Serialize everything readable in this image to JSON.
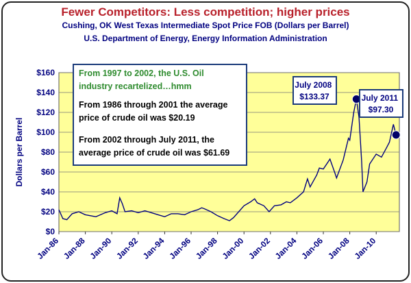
{
  "header": {
    "title": "Fewer Competitors: Less competition; higher prices",
    "subtitle": "Cushing, OK West Texas Intermediate Spot Price FOB (Dollars per Barrel)",
    "source": "U.S. Department of Energy, Energy Information Administration"
  },
  "annotation_box": {
    "lines_green": [
      "From 1997 to 2002, the U.S. Oil",
      "industry recartelized…hmm"
    ],
    "lines_a": [
      "From 1986 through 2001 the average",
      "price of crude oil was $20.19"
    ],
    "lines_b": [
      "From 2002 through July 2011, the",
      "average price of crude oil was $61.69"
    ]
  },
  "callouts": [
    {
      "lines": [
        "July 2008",
        "$133.37"
      ],
      "x": 2008.5,
      "y": 133.37
    },
    {
      "lines": [
        "July 2011",
        "$97.30"
      ],
      "x": 2011.5,
      "y": 97.3
    }
  ],
  "colors": {
    "plot_bg": "#ffff99",
    "line": "#000080",
    "green_text": "#2e8b2e",
    "marker": "#000066"
  },
  "chart_data": {
    "type": "line",
    "title": "Fewer Competitors: Less competition; higher prices",
    "xlabel": "",
    "ylabel": "Dollars per Barrel",
    "ylim": [
      0,
      160
    ],
    "xlim": [
      1986,
      2011.75
    ],
    "grid": "horizontal",
    "yticks": [
      "$0",
      "$20",
      "$40",
      "$60",
      "$80",
      "$100",
      "$120",
      "$140",
      "$160"
    ],
    "xticks": [
      "Jan-86",
      "Jan-88",
      "Jan-90",
      "Jan-92",
      "Jan-94",
      "Jan-96",
      "Jan-98",
      "Jan-00",
      "Jan-02",
      "Jan-04",
      "Jan-06",
      "Jan-08",
      "Jan-10"
    ],
    "series": [
      {
        "x": [
          1986.0,
          1986.3,
          1986.6,
          1987.0,
          1987.5,
          1988.0,
          1988.8,
          1989.5,
          1990.0,
          1990.4,
          1990.6,
          1990.8,
          1991.0,
          1991.5,
          1992.0,
          1992.5,
          1993.0,
          1993.5,
          1994.0,
          1994.5,
          1995.0,
          1995.5,
          1996.0,
          1996.5,
          1996.8,
          1997.0,
          1997.5,
          1998.0,
          1998.5,
          1998.9,
          1999.2,
          1999.6,
          2000.0,
          2000.5,
          2000.8,
          2001.0,
          2001.5,
          2001.9,
          2002.3,
          2002.8,
          2003.2,
          2003.5,
          2004.0,
          2004.5,
          2004.8,
          2005.0,
          2005.5,
          2005.7,
          2006.0,
          2006.5,
          2006.9,
          2007.0,
          2007.5,
          2007.9,
          2008.0,
          2008.3,
          2008.5,
          2008.7,
          2008.9,
          2009.0,
          2009.3,
          2009.5,
          2010.0,
          2010.4,
          2010.8,
          2011.0,
          2011.3,
          2011.5
        ],
        "y": [
          22,
          13,
          12,
          18,
          20,
          17,
          15,
          19,
          21,
          18,
          34,
          28,
          20,
          21,
          19,
          21,
          19,
          17,
          15,
          18,
          18,
          17,
          20,
          22,
          24,
          23,
          20,
          16,
          13,
          11,
          14,
          20,
          26,
          30,
          33,
          29,
          26,
          20,
          26,
          27,
          30,
          29,
          34,
          40,
          53,
          45,
          57,
          64,
          63,
          73,
          58,
          54,
          72,
          94,
          92,
          120,
          133.37,
          115,
          70,
          40,
          50,
          68,
          78,
          75,
          85,
          90,
          108,
          97.3
        ]
      }
    ]
  }
}
